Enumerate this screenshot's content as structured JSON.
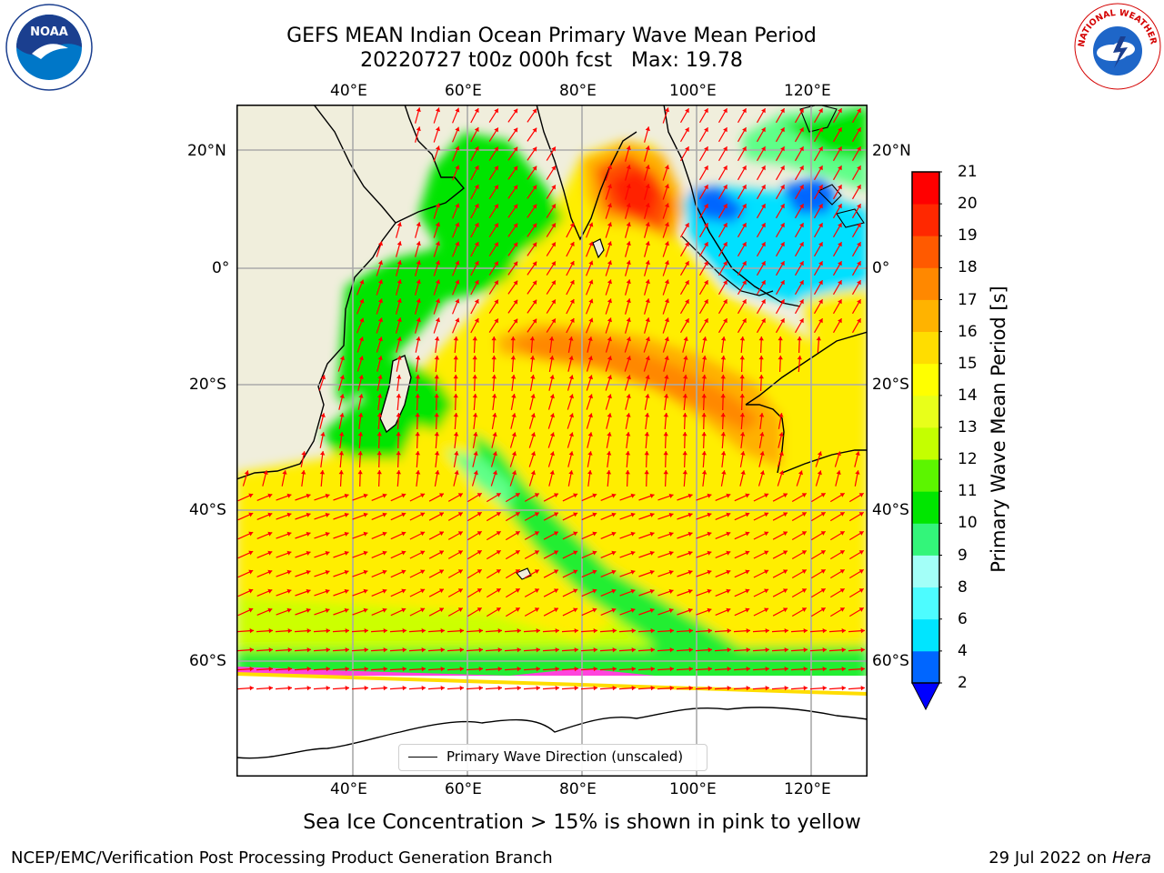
{
  "title": {
    "line1": "GEFS MEAN Indian Ocean Primary Wave Mean Period",
    "line2": "20220727 t00z 000h fcst   Max: 19.78"
  },
  "axes": {
    "lon_ticks": [
      "40°E",
      "60°E",
      "80°E",
      "100°E",
      "120°E"
    ],
    "lat_ticks": [
      "20°N",
      "0°",
      "20°S",
      "40°S",
      "60°S"
    ]
  },
  "legend": {
    "label": "Primary Wave Direction (unscaled)"
  },
  "colorbar": {
    "label": "Primary Wave Mean Period [s]",
    "ticks": [
      "2",
      "4",
      "6",
      "8",
      "9",
      "10",
      "11",
      "12",
      "13",
      "14",
      "15",
      "16",
      "17",
      "18",
      "19",
      "20",
      "21"
    ],
    "colors": [
      "#0066ff",
      "#00e5ff",
      "#4dfcff",
      "#a3fff8",
      "#33f57a",
      "#00e600",
      "#5cf500",
      "#c4ff00",
      "#e8ff1a",
      "#ffff00",
      "#ffdd00",
      "#ffb300",
      "#ff8800",
      "#ff5a00",
      "#ff2800",
      "#ff0000"
    ],
    "extend_color": "#0000ff"
  },
  "subnote": "Sea Ice Concentration > 15% is shown in pink to yellow",
  "footer": {
    "left": "NCEP/EMC/Verification Post Processing Product Generation Branch",
    "right_prefix": "29 Jul 2022 on ",
    "right_italic": "Hera"
  },
  "logos": {
    "noaa_text": "NOAA",
    "nws_text": "NATIONAL WEATHER SERVICE"
  },
  "colors": {
    "land": "#f0eedc",
    "arrow": "#ff0000",
    "grid": "#aaaaaa",
    "ice": "#ff44dd"
  }
}
